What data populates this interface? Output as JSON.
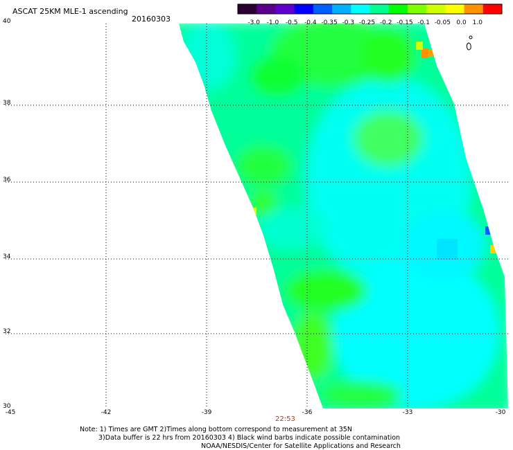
{
  "header": {
    "title": "ASCAT 25KM MLE-1 ascending",
    "date": "20160303"
  },
  "colorbar": {
    "labels": [
      "-3.0",
      "-1.0",
      "-0.5",
      "-0.4",
      "-0.35",
      "-0.3",
      "-0.25",
      "-0.2",
      "-0.15",
      "-0.1",
      "-0.05",
      "0.0",
      "1.0"
    ],
    "colors": [
      "#2a0030",
      "#5a008a",
      "#6000d0",
      "#0000ff",
      "#0060ff",
      "#00b0ff",
      "#00ffff",
      "#00ff90",
      "#00ff00",
      "#80ff00",
      "#d0ff00",
      "#ffff00",
      "#ff9000",
      "#ff0000"
    ]
  },
  "axes": {
    "y_labels": [
      "40",
      "38",
      "36",
      "34",
      "32",
      "30"
    ],
    "x_labels": [
      "-45",
      "-42",
      "-39",
      "-36",
      "-33",
      "-30"
    ]
  },
  "swath_time": "22:53",
  "notes": [
    "Note: 1) Times are GMT 2)Times along bottom correspond to measurement at 35N",
    "3)Data buffer is 22 hrs from 20160303 4) Black wind barbs indicate possible contamination",
    "NOAA/NESDIS/Center for Satellite Applications and Research"
  ]
}
